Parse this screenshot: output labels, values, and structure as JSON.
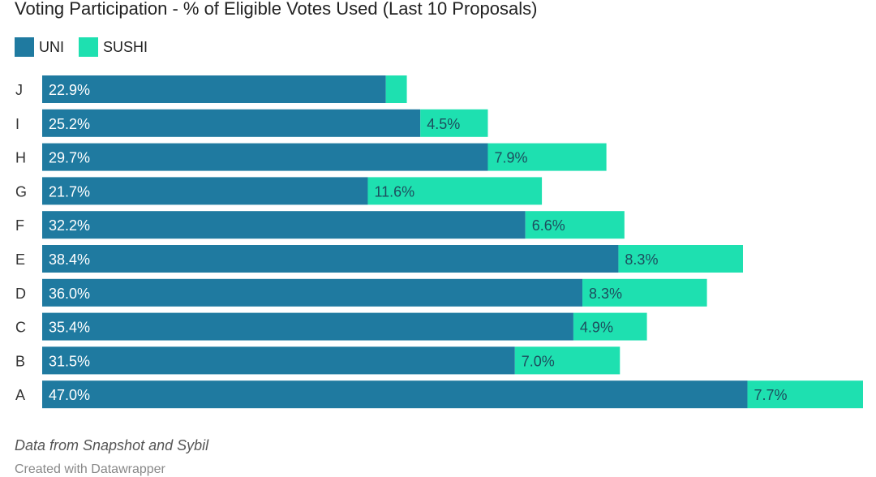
{
  "title": "Voting Participation - % of Eligible Votes Used (Last 10 Proposals)",
  "legend": [
    {
      "name": "UNI",
      "color": "#1f7aa0"
    },
    {
      "name": "SUSHI",
      "color": "#1ee0b0"
    }
  ],
  "chart_data": {
    "type": "bar",
    "orientation": "horizontal",
    "stacked": true,
    "categories": [
      "J",
      "I",
      "H",
      "G",
      "F",
      "E",
      "D",
      "C",
      "B",
      "A"
    ],
    "series": [
      {
        "name": "UNI",
        "color": "#1f7aa0",
        "values": [
          22.9,
          25.2,
          29.7,
          21.7,
          32.2,
          38.4,
          36.0,
          35.4,
          31.5,
          47.0
        ],
        "labels": [
          "22.9%",
          "25.2%",
          "29.7%",
          "21.7%",
          "32.2%",
          "38.4%",
          "36.0%",
          "35.4%",
          "31.5%",
          "47.0%"
        ]
      },
      {
        "name": "SUSHI",
        "color": "#1ee0b0",
        "values": [
          1.4,
          4.5,
          7.9,
          11.6,
          6.6,
          8.3,
          8.3,
          4.9,
          7.0,
          7.7
        ],
        "labels": [
          "",
          "4.5%",
          "7.9%",
          "11.6%",
          "6.6%",
          "8.3%",
          "8.3%",
          "4.9%",
          "7.0%",
          "7.7%"
        ]
      }
    ],
    "xlim": [
      0,
      54.7
    ],
    "grid": false,
    "legend_position": "top-left"
  },
  "footer": {
    "note": "Data from Snapshot and Sybil",
    "credit": "Created with Datawrapper"
  }
}
